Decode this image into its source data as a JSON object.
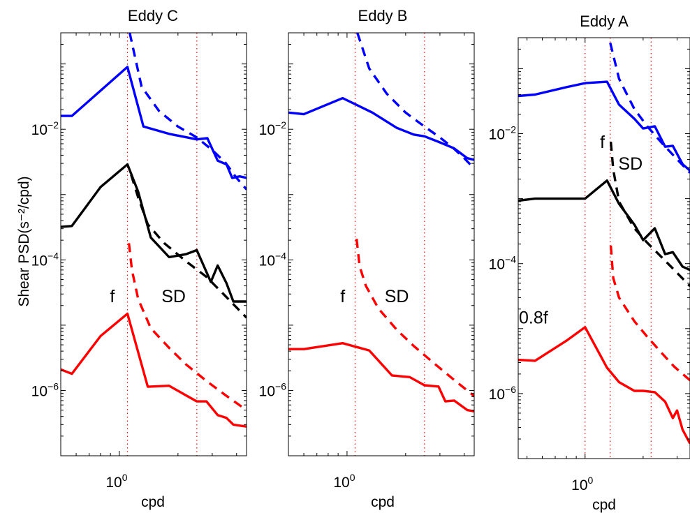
{
  "figure": {
    "ylabel": "Shear PSD(s⁻²/cpd)",
    "background": "#ffffff"
  },
  "colors": {
    "blue": "#0000ff",
    "black": "#000000",
    "red": "#ff0000",
    "refline": "#ff0000"
  },
  "chart_data": [
    {
      "type": "line",
      "title": "Eddy C",
      "xlabel": "cpd",
      "ylabel": "Shear PSD(s⁻²/cpd)",
      "xscale": "log",
      "yscale": "log",
      "xlim": [
        0.5,
        4.5
      ],
      "ylim": [
        1e-07,
        0.3
      ],
      "xticks": [
        {
          "value": 1,
          "label": "10^0"
        }
      ],
      "yticks": [
        {
          "value": 0.01,
          "label": "10^-2"
        },
        {
          "value": 0.0001,
          "label": "10^-4"
        },
        {
          "value": 1e-06,
          "label": "10^-6"
        }
      ],
      "reference_lines": [
        1.1,
        2.5
      ],
      "annotations": [
        {
          "text": "f",
          "x": 0.92,
          "y": 2.8e-05
        },
        {
          "text": "SD",
          "x": 1.9,
          "y": 2.8e-05
        }
      ],
      "series": [
        {
          "color": "blue",
          "style": "solid",
          "x": [
            0.5,
            0.57,
            1.1,
            1.33,
            1.8,
            2.5,
            2.83,
            3.2,
            3.55,
            3.8,
            4.15,
            4.5
          ],
          "y": [
            0.016,
            0.016,
            0.09,
            0.011,
            0.0085,
            0.007,
            0.0073,
            0.0033,
            0.0029,
            0.0018,
            0.0019,
            0.0018
          ]
        },
        {
          "color": "blue",
          "style": "dashed",
          "x": [
            1.13,
            1.3,
            1.6,
            2.0,
            2.5,
            3.0,
            3.5,
            4.0,
            4.5
          ],
          "y": [
            0.3,
            0.045,
            0.019,
            0.011,
            0.0075,
            0.0048,
            0.0031,
            0.0018,
            0.0012
          ]
        },
        {
          "color": "black",
          "style": "solid",
          "x": [
            0.5,
            0.57,
            0.8,
            1.1,
            1.25,
            1.45,
            1.8,
            2.2,
            2.5,
            2.95,
            3.2,
            3.55,
            3.85,
            4.5
          ],
          "y": [
            0.00032,
            0.00033,
            0.0013,
            0.0029,
            0.0011,
            0.00022,
            0.00011,
            0.000122,
            0.000141,
            4.6e-05,
            8.2e-05,
            4.4e-05,
            2.3e-05,
            2.3e-05
          ]
        },
        {
          "color": "black",
          "style": "dashed",
          "x": [
            1.15,
            1.25,
            1.4,
            1.7,
            2.2,
            2.8,
            3.5,
            4.5
          ],
          "y": [
            0.002,
            0.0009,
            0.00035,
            0.00018,
            9.5e-05,
            5.5e-05,
            2.8e-05,
            1.3e-05
          ]
        },
        {
          "color": "red",
          "style": "solid",
          "x": [
            0.5,
            0.57,
            0.8,
            1.1,
            1.4,
            1.8,
            2.2,
            2.5,
            2.8,
            3.2,
            3.55,
            3.85,
            4.5
          ],
          "y": [
            2.1e-06,
            1.8e-06,
            6.8e-06,
            1.5e-05,
            1.14e-06,
            1.18e-06,
            8.4e-07,
            6.8e-07,
            6.8e-07,
            4.2e-07,
            3.8e-07,
            3e-07,
            2.8e-07
          ]
        },
        {
          "color": "red",
          "style": "dashed",
          "x": [
            1.12,
            1.16,
            1.25,
            1.45,
            1.8,
            2.2,
            2.8,
            3.5,
            4.5
          ],
          "y": [
            0.00018,
            7e-05,
            2.5e-05,
            9e-06,
            4.5e-06,
            2.5e-06,
            1.4e-06,
            8.5e-07,
            5e-07
          ]
        }
      ]
    },
    {
      "type": "line",
      "title": "Eddy B",
      "xlabel": "cpd",
      "xscale": "log",
      "yscale": "log",
      "xlim": [
        0.5,
        4.5
      ],
      "ylim": [
        1e-07,
        0.3
      ],
      "xticks": [
        {
          "value": 1,
          "label": "10^0"
        }
      ],
      "yticks": [
        {
          "value": 0.01,
          "label": "10^-2"
        },
        {
          "value": 0.0001,
          "label": "10^-4"
        },
        {
          "value": 1e-06,
          "label": "10^-6"
        }
      ],
      "reference_lines": [
        1.1,
        2.5
      ],
      "annotations": [
        {
          "text": "f",
          "x": 0.95,
          "y": 2.8e-05
        },
        {
          "text": "SD",
          "x": 1.8,
          "y": 2.8e-05
        }
      ],
      "series": [
        {
          "color": "blue",
          "style": "solid",
          "x": [
            0.5,
            0.6,
            0.95,
            1.35,
            1.8,
            2.2,
            2.5,
            3.0,
            3.55,
            4.15,
            4.5
          ],
          "y": [
            0.018,
            0.017,
            0.03,
            0.018,
            0.0105,
            0.0083,
            0.0078,
            0.0063,
            0.0051,
            0.0036,
            0.0034
          ]
        },
        {
          "color": "blue",
          "style": "dashed",
          "x": [
            1.13,
            1.3,
            1.6,
            2.0,
            2.5,
            3.0,
            3.5,
            4.0,
            4.5
          ],
          "y": [
            0.3,
            0.085,
            0.035,
            0.018,
            0.011,
            0.0075,
            0.0052,
            0.0036,
            0.0025
          ]
        },
        {
          "color": "red",
          "style": "solid",
          "x": [
            0.5,
            0.6,
            0.95,
            1.3,
            1.7,
            2.1,
            2.5,
            2.95,
            3.2,
            3.55,
            4.15,
            4.5
          ],
          "y": [
            4.3e-06,
            4.3e-06,
            5.3e-06,
            4.1e-06,
            1.7e-06,
            1.6e-06,
            1.2e-06,
            1.15e-06,
            6.8e-07,
            7e-07,
            5e-07,
            4.8e-07
          ]
        },
        {
          "color": "red",
          "style": "dashed",
          "x": [
            1.12,
            1.16,
            1.25,
            1.45,
            1.8,
            2.2,
            2.8,
            3.5,
            4.5
          ],
          "y": [
            0.00021,
            8e-05,
            4e-05,
            1.8e-05,
            8.5e-06,
            4.8e-06,
            2.6e-06,
            1.5e-06,
            8.2e-07
          ]
        }
      ]
    },
    {
      "type": "line",
      "title": "Eddy A",
      "xlabel": "cpd",
      "xscale": "log",
      "yscale": "log",
      "xlim": [
        0.45,
        3.5
      ],
      "ylim": [
        1e-07,
        0.3
      ],
      "xticks": [
        {
          "value": 1,
          "label": "10^0"
        }
      ],
      "yticks": [
        {
          "value": 0.01,
          "label": "10^-2"
        },
        {
          "value": 0.0001,
          "label": "10^-4"
        },
        {
          "value": 1e-06,
          "label": "10^-6"
        }
      ],
      "reference_lines": [
        1.0,
        1.35,
        2.2
      ],
      "annotations": [
        {
          "text": "f",
          "x": 1.23,
          "y": 0.0075
        },
        {
          "text": "SD",
          "x": 1.72,
          "y": 0.0035
        },
        {
          "text": "0.8f",
          "x": 0.54,
          "y": 1.5e-05
        }
      ],
      "series": [
        {
          "color": "blue",
          "style": "solid",
          "x": [
            0.45,
            0.55,
            0.8,
            1.0,
            1.3,
            1.5,
            1.8,
            2.0,
            2.3,
            2.6,
            2.85,
            3.2,
            3.5
          ],
          "y": [
            0.038,
            0.04,
            0.052,
            0.06,
            0.063,
            0.028,
            0.017,
            0.012,
            0.013,
            0.0063,
            0.0065,
            0.0034,
            0.0027
          ]
        },
        {
          "color": "blue",
          "style": "dashed",
          "x": [
            1.35,
            1.5,
            1.8,
            2.1,
            2.5,
            2.9,
            3.5
          ],
          "y": [
            0.25,
            0.07,
            0.024,
            0.013,
            0.0072,
            0.0045,
            0.0025
          ]
        },
        {
          "color": "black",
          "style": "solid",
          "x": [
            0.45,
            0.55,
            0.8,
            1.0,
            1.3,
            1.5,
            1.8,
            2.0,
            2.3,
            2.6,
            2.85,
            3.2,
            3.5
          ],
          "y": [
            0.00093,
            0.001,
            0.001,
            0.001,
            0.0019,
            0.00083,
            0.0004,
            0.00023,
            0.00035,
            0.00014,
            0.00015,
            9e-05,
            8e-05
          ]
        },
        {
          "color": "black",
          "style": "dashed",
          "x": [
            1.36,
            1.4,
            1.5,
            1.8,
            2.1,
            2.5,
            2.9,
            3.5
          ],
          "y": [
            0.0075,
            0.0028,
            0.0009,
            0.00035,
            0.00021,
            0.000125,
            8e-05,
            4.5e-05
          ]
        },
        {
          "color": "red",
          "style": "solid",
          "x": [
            0.45,
            0.55,
            0.8,
            1.0,
            1.3,
            1.5,
            1.8,
            2.0,
            2.3,
            2.6,
            2.85,
            3.0,
            3.2,
            3.5
          ],
          "y": [
            3.3e-06,
            3.2e-06,
            6.5e-06,
            1.05e-05,
            2.5e-06,
            1.5e-06,
            1.1e-06,
            1.1e-06,
            1.05e-06,
            7.5e-07,
            4.2e-07,
            5.5e-07,
            2.8e-07,
            1.7e-07
          ]
        },
        {
          "color": "red",
          "style": "dashed",
          "x": [
            1.36,
            1.4,
            1.5,
            1.8,
            2.1,
            2.5,
            2.9,
            3.5
          ],
          "y": [
            0.00019,
            6e-05,
            3e-05,
            1.3e-05,
            7.5e-06,
            4.2e-06,
            2.6e-06,
            1.6e-06
          ]
        }
      ]
    }
  ]
}
